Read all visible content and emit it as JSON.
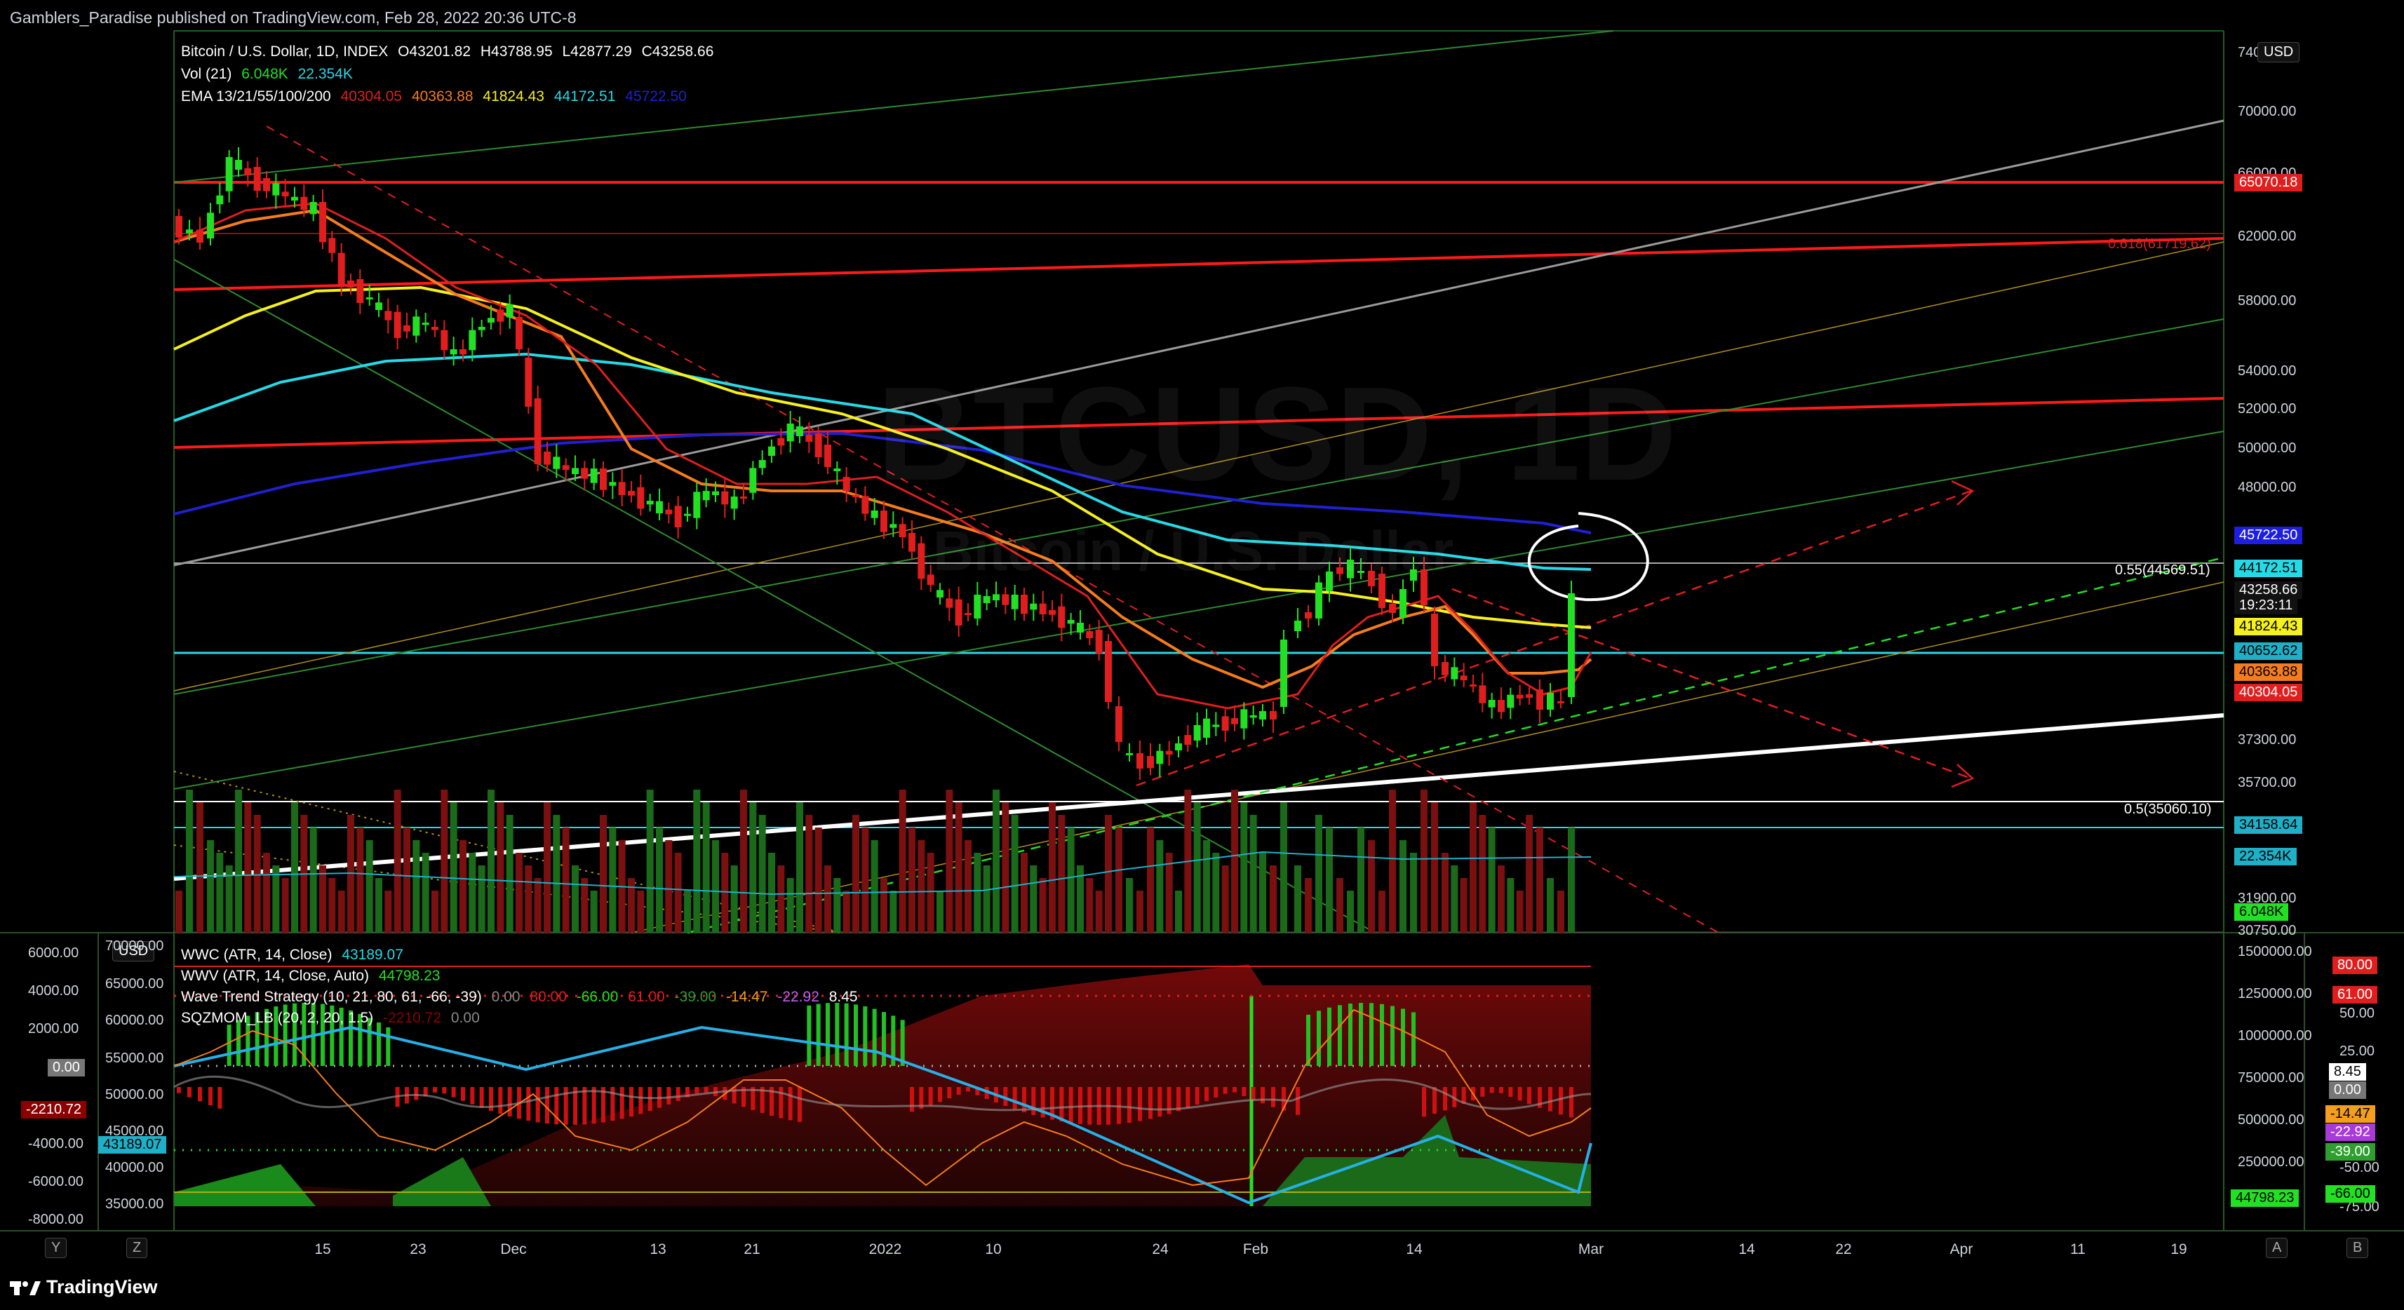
{
  "publish_line": "Gamblers_Paradise published on TradingView.com, Feb 28, 2022 20:36 UTC-8",
  "watermark": {
    "symbol": "BTCUSD, 1D",
    "name": "Bitcoin / U.S. Dollar"
  },
  "legend": {
    "main": {
      "name": "Bitcoin / U.S. Dollar, 1D, INDEX",
      "o": "O43201.82",
      "h": "H43788.95",
      "l": "L42877.29",
      "c": "C43258.66"
    },
    "vol": {
      "name": "Vol (21)",
      "v1": "6.048K",
      "v2": "22.354K"
    },
    "ema": {
      "name": "EMA 13/21/55/100/200",
      "v13": "40304.05",
      "v21": "40363.88",
      "v55": "41824.43",
      "v100": "44172.51",
      "v200": "45722.50"
    },
    "wwc": {
      "name": "WWC (ATR, 14, Close)",
      "v": "43189.07"
    },
    "wwv": {
      "name": "WWV (ATR, 14, Close, Auto)",
      "v": "44798.23"
    },
    "wt": {
      "name": "Wave Trend Strategy (10, 21, 80, 61, -66, -39)",
      "a": "0.00",
      "b": "80.00",
      "c": "-66.00",
      "d": "61.00",
      "e": "-39.00",
      "f": "-14.47",
      "g": "-22.92",
      "h": "8.45"
    },
    "sqz": {
      "name": "SQZMOM_LB (20, 2, 20, 1.5)",
      "a": "-2210.72",
      "b": "0.00"
    }
  },
  "currency": "USD",
  "price_axis": [
    "70000.00",
    "66000.00",
    "62000.00",
    "58000.00",
    "54000.00",
    "52000.00",
    "50000.00",
    "48000.00",
    "37300.00",
    "35700.00",
    "31900.00",
    "30750.00"
  ],
  "price_axis_top": "74000",
  "price_labels": [
    {
      "text": "65070.18",
      "color": "#e01e1e",
      "fg": "#ffffff"
    },
    {
      "text": "45722.50",
      "color": "#1e1ee0",
      "fg": "#ffffff"
    },
    {
      "text": "44172.51",
      "color": "#26d9e6",
      "fg": "#000000"
    },
    {
      "text": "43258.66",
      "color": "#111111",
      "fg": "#ffffff"
    },
    {
      "text": "19:23:11",
      "color": "#111111",
      "fg": "#ffffff"
    },
    {
      "text": "41824.43",
      "color": "#f5f01e",
      "fg": "#000000"
    },
    {
      "text": "40652.62",
      "color": "#1fb0c8",
      "fg": "#000000"
    },
    {
      "text": "40363.88",
      "color": "#f57c1e",
      "fg": "#000000"
    },
    {
      "text": "40304.05",
      "color": "#e01e1e",
      "fg": "#ffffff"
    },
    {
      "text": "34158.64",
      "color": "#1fb0c8",
      "fg": "#000000"
    },
    {
      "text": "22.354K",
      "color": "#1fb0c8",
      "fg": "#000000"
    },
    {
      "text": "6.048K",
      "color": "#22e022",
      "fg": "#000000"
    }
  ],
  "annotations": {
    "fib055": "0.55(44569.51)",
    "fib05": "0.5(35060.10)",
    "fib0618": "0.618(61719.62)"
  },
  "lower_right_axis": [
    "1500000.00",
    "1250000.00",
    "1000000.00",
    "750000.00",
    "500000.00",
    "250000.00"
  ],
  "lower_right_axis2": [
    "50.00",
    "25.00",
    "0.00",
    "-50.00",
    "-75.00"
  ],
  "lower_right_labels": [
    {
      "text": "80.00",
      "color": "#e01e1e",
      "fg": "#ffffff"
    },
    {
      "text": "61.00",
      "color": "#e01e1e",
      "fg": "#ffffff"
    },
    {
      "text": "8.45",
      "color": "#ffffff",
      "fg": "#000000"
    },
    {
      "text": "0.00",
      "color": "#777777",
      "fg": "#ffffff"
    },
    {
      "text": "-14.47",
      "color": "#f59e1e",
      "fg": "#000000"
    },
    {
      "text": "-22.92",
      "color": "#a83ad9",
      "fg": "#ffffff"
    },
    {
      "text": "-39.00",
      "color": "#2e9e2e",
      "fg": "#ffffff"
    },
    {
      "text": "-66.00",
      "color": "#22e022",
      "fg": "#000000"
    },
    {
      "text": "44798.23",
      "color": "#22e022",
      "fg": "#000000"
    }
  ],
  "lower_left_axis": [
    "6000.00",
    "4000.00",
    "2000.00",
    "-4000.00",
    "-6000.00",
    "-8000.00"
  ],
  "lower_left_labels": [
    {
      "text": "0.00",
      "color": "#777777",
      "fg": "#ffffff"
    },
    {
      "text": "-2210.72",
      "color": "#8b0000",
      "fg": "#ffffff"
    }
  ],
  "lower_mid_axis": [
    "70000.00",
    "65000.00",
    "60000.00",
    "55000.00",
    "50000.00",
    "45000.00",
    "40000.00",
    "35000.00"
  ],
  "lower_mid_label": {
    "text": "43189.07",
    "color": "#1fb0c8",
    "fg": "#000000"
  },
  "x_axis": [
    "15",
    "23",
    "Dec",
    "13",
    "21",
    "2022",
    "10",
    "24",
    "Feb",
    "14",
    "Mar",
    "14",
    "22",
    "Apr",
    "11",
    "19"
  ],
  "bottom_boxes": [
    "Y",
    "Z",
    "A",
    "B"
  ],
  "brand": "TradingView",
  "colors": {
    "up": "#22e022",
    "down": "#e01e1e",
    "ema13": "#e01e1e",
    "ema21": "#f57c1e",
    "ema55": "#f5f01e",
    "ema100": "#26d9e6",
    "ema200": "#2020d0"
  }
}
